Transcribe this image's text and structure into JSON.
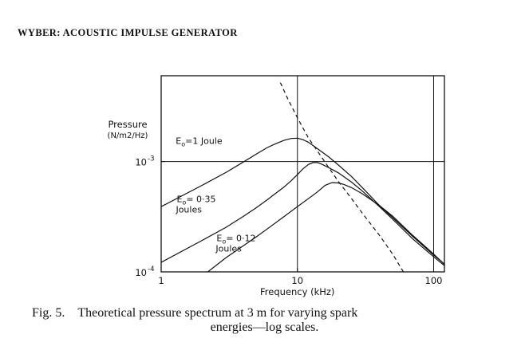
{
  "header": {
    "title": "WYBER: ACOUSTIC IMPULSE GENERATOR"
  },
  "caption": {
    "number": "Fig. 5.",
    "line1": "Theoretical pressure spectrum at 3 m for varying spark",
    "line2": "energies—log scales."
  },
  "chart_data": {
    "type": "line",
    "xscale": "log",
    "yscale": "log",
    "xlim": [
      1,
      120
    ],
    "ylim": [
      0.0001,
      0.006
    ],
    "xlabel": "Frequency (kHz)",
    "ylabel_line1": "Pressure",
    "ylabel_line2": "(N/m2/Hz)",
    "x_ticks": [
      {
        "value": 1,
        "label": "1"
      },
      {
        "value": 10,
        "label": "10"
      },
      {
        "value": 100,
        "label": "100"
      }
    ],
    "y_ticks": [
      {
        "value": 0.0001,
        "label": "10",
        "exp": "-4"
      },
      {
        "value": 0.001,
        "label": "10",
        "exp": "-3"
      }
    ],
    "grid": {
      "x": [
        10,
        100
      ],
      "y": [
        0.001
      ]
    },
    "series": [
      {
        "x": [
          1,
          2,
          3,
          4,
          5,
          6,
          7,
          8,
          9,
          10,
          11,
          12,
          14,
          17,
          20,
          25,
          30,
          40,
          50,
          70,
          100,
          120
        ],
        "y": [
          0.00039,
          0.00061,
          0.0008,
          0.00099,
          0.00117,
          0.00134,
          0.00146,
          0.00156,
          0.00162,
          0.00163,
          0.00158,
          0.0015,
          0.00131,
          0.0011,
          0.00093,
          0.00073,
          0.00058,
          0.0004,
          0.00031,
          0.00021,
          0.000142,
          0.000118
        ],
        "style": "solid"
      },
      {
        "x": [
          1,
          2,
          3,
          4,
          5,
          6,
          7,
          8,
          9,
          10,
          11,
          12,
          13,
          14,
          15,
          17,
          20,
          25,
          30,
          40,
          50,
          70,
          100,
          120
        ],
        "y": [
          0.000122,
          0.000193,
          0.000254,
          0.000318,
          0.000382,
          0.00045,
          0.00052,
          0.00059,
          0.00067,
          0.00076,
          0.00086,
          0.00094,
          0.00098,
          0.00098,
          0.00095,
          0.00088,
          0.00079,
          0.00065,
          0.00054,
          0.00039,
          0.0003,
          0.0002,
          0.000137,
          0.000114
        ],
        "style": "solid"
      },
      {
        "x": [
          2.2,
          3,
          4,
          5,
          6,
          8,
          10,
          12,
          14,
          16,
          18,
          20,
          22,
          25,
          30,
          40,
          50,
          70,
          100,
          120
        ],
        "y": [
          0.0001,
          0.000135,
          0.000172,
          0.000208,
          0.000245,
          0.000318,
          0.00039,
          0.00046,
          0.00053,
          0.00061,
          0.000645,
          0.00064,
          0.00062,
          0.00058,
          0.00051,
          0.0004,
          0.00032,
          0.000215,
          0.000145,
          0.000117
        ],
        "style": "solid"
      },
      {
        "x": [
          7.5,
          8.5,
          10,
          12,
          14,
          17,
          20,
          25,
          30,
          40,
          50,
          60
        ],
        "y": [
          0.0052,
          0.0037,
          0.0025,
          0.00165,
          0.00125,
          0.00088,
          0.00066,
          0.00046,
          0.00034,
          0.000215,
          0.000145,
          0.0001
        ],
        "style": "dashed"
      }
    ],
    "annotations": [
      {
        "sub": "o",
        "text": "=1 Joule",
        "x": 1.28,
        "y": 0.00145
      },
      {
        "sub": "o",
        "text": "= 0·35",
        "line2": "Joules",
        "x": 1.3,
        "y": 0.00043
      },
      {
        "sub": "o",
        "text": "= 0·12",
        "line2": "Joules",
        "x": 2.55,
        "y": 0.00019
      }
    ]
  }
}
